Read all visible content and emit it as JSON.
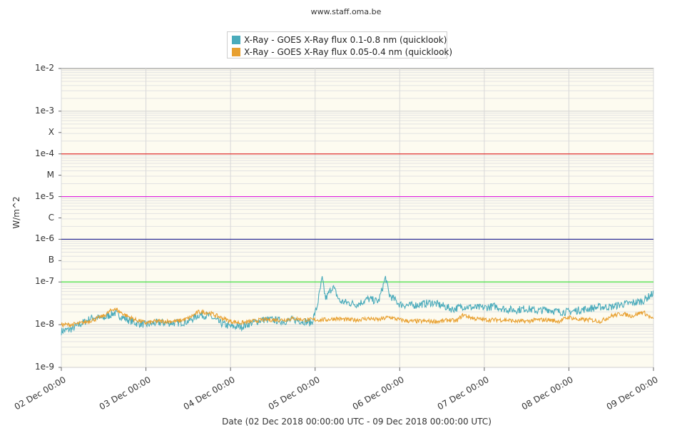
{
  "credit": "www.staff.oma.be",
  "chart_data": {
    "type": "line",
    "xlabel": "Date (02 Dec 2018 00:00:00 UTC - 09 Dec 2018 00:00:00 UTC)",
    "ylabel": "W/m^2",
    "yscale": "log",
    "ylim": [
      1e-09,
      0.01
    ],
    "xlim": [
      "2018-12-02T00:00",
      "2018-12-09T00:00"
    ],
    "x_ticks": [
      "02 Dec 00:00",
      "03 Dec 00:00",
      "04 Dec 00:00",
      "05 Dec 00:00",
      "06 Dec 00:00",
      "07 Dec 00:00",
      "08 Dec 00:00",
      "09 Dec 00:00"
    ],
    "y_ticks": [
      {
        "label": "1e-2",
        "value": 0.01
      },
      {
        "label": "1e-3",
        "value": 0.001
      },
      {
        "label": "X",
        "value": 0.0003162
      },
      {
        "label": "1e-4",
        "value": 0.0001
      },
      {
        "label": "M",
        "value": 3.162e-05
      },
      {
        "label": "1e-5",
        "value": 1e-05
      },
      {
        "label": "C",
        "value": 3.162e-06
      },
      {
        "label": "1e-6",
        "value": 1e-06
      },
      {
        "label": "B",
        "value": 3.162e-07
      },
      {
        "label": "1e-7",
        "value": 1e-07
      },
      {
        "label": "1e-8",
        "value": 1e-08
      },
      {
        "label": "1e-9",
        "value": 1e-09
      }
    ],
    "threshold_lines": [
      {
        "value": 0.0001,
        "color": "#e03030"
      },
      {
        "value": 1e-05,
        "color": "#e020e0"
      },
      {
        "value": 1e-06,
        "color": "#202090"
      },
      {
        "value": 1e-07,
        "color": "#40e040"
      }
    ],
    "legend_position": "top-center",
    "grid": true,
    "series": [
      {
        "name": "X-Ray - GOES X-Ray flux 0.1-0.8 nm (quicklook)",
        "color": "#4aabbb",
        "x": [
          "2018-12-02T00:00",
          "2018-12-02T03:00",
          "2018-12-02T06:00",
          "2018-12-02T09:00",
          "2018-12-02T12:00",
          "2018-12-02T15:00",
          "2018-12-02T18:00",
          "2018-12-02T21:00",
          "2018-12-03T00:00",
          "2018-12-03T03:00",
          "2018-12-03T06:00",
          "2018-12-03T09:00",
          "2018-12-03T12:00",
          "2018-12-03T15:00",
          "2018-12-03T18:00",
          "2018-12-03T21:00",
          "2018-12-04T00:00",
          "2018-12-04T03:00",
          "2018-12-04T06:00",
          "2018-12-04T09:00",
          "2018-12-04T12:00",
          "2018-12-04T15:00",
          "2018-12-04T18:00",
          "2018-12-04T21:00",
          "2018-12-04T23:00",
          "2018-12-05T00:30",
          "2018-12-05T02:00",
          "2018-12-05T03:00",
          "2018-12-05T05:00",
          "2018-12-05T07:00",
          "2018-12-05T09:00",
          "2018-12-05T12:00",
          "2018-12-05T15:00",
          "2018-12-05T18:00",
          "2018-12-05T20:00",
          "2018-12-05T21:00",
          "2018-12-06T00:00",
          "2018-12-06T03:00",
          "2018-12-06T06:00",
          "2018-12-06T09:00",
          "2018-12-06T12:00",
          "2018-12-06T15:00",
          "2018-12-06T18:00",
          "2018-12-06T21:00",
          "2018-12-07T00:00",
          "2018-12-07T03:00",
          "2018-12-07T06:00",
          "2018-12-07T09:00",
          "2018-12-07T12:00",
          "2018-12-07T15:00",
          "2018-12-07T18:00",
          "2018-12-07T21:00",
          "2018-12-08T00:00",
          "2018-12-08T03:00",
          "2018-12-08T06:00",
          "2018-12-08T09:00",
          "2018-12-08T12:00",
          "2018-12-08T15:00",
          "2018-12-08T18:00",
          "2018-12-08T21:00",
          "2018-12-09T00:00"
        ],
        "y": [
          7e-09,
          8e-09,
          1.1e-08,
          1.5e-08,
          1.4e-08,
          1.9e-08,
          1.4e-08,
          1.1e-08,
          1e-08,
          1.1e-08,
          1.1e-08,
          1.1e-08,
          1.2e-08,
          1.7e-08,
          1.6e-08,
          1.1e-08,
          9e-09,
          9e-09,
          1.1e-08,
          1.3e-08,
          1.3e-08,
          1.2e-08,
          1.3e-08,
          1.2e-08,
          1.1e-08,
          2.5e-08,
          1.2e-07,
          4e-08,
          8e-08,
          3.5e-08,
          3.3e-08,
          3e-08,
          4e-08,
          3.5e-08,
          1.3e-07,
          5e-08,
          3e-08,
          2.8e-08,
          3e-08,
          3.3e-08,
          2.8e-08,
          2.3e-08,
          2.7e-08,
          2.5e-08,
          2.5e-08,
          2.7e-08,
          2.3e-08,
          2.2e-08,
          2.4e-08,
          2.1e-08,
          2.3e-08,
          2e-08,
          2e-08,
          2.2e-08,
          2.4e-08,
          2.6e-08,
          2.6e-08,
          3e-08,
          3.2e-08,
          3.6e-08,
          5.5e-08
        ]
      },
      {
        "name": "X-Ray - GOES X-Ray flux 0.05-0.4 nm (quicklook)",
        "color": "#e8a030",
        "x": [
          "2018-12-02T00:00",
          "2018-12-02T03:00",
          "2018-12-02T06:00",
          "2018-12-02T09:00",
          "2018-12-02T12:00",
          "2018-12-02T15:00",
          "2018-12-02T18:00",
          "2018-12-02T21:00",
          "2018-12-03T00:00",
          "2018-12-03T03:00",
          "2018-12-03T06:00",
          "2018-12-03T09:00",
          "2018-12-03T12:00",
          "2018-12-03T15:00",
          "2018-12-03T18:00",
          "2018-12-03T21:00",
          "2018-12-04T00:00",
          "2018-12-04T03:00",
          "2018-12-04T06:00",
          "2018-12-04T09:00",
          "2018-12-04T12:00",
          "2018-12-04T15:00",
          "2018-12-04T18:00",
          "2018-12-04T21:00",
          "2018-12-05T00:00",
          "2018-12-05T03:00",
          "2018-12-05T06:00",
          "2018-12-05T09:00",
          "2018-12-05T12:00",
          "2018-12-05T15:00",
          "2018-12-05T18:00",
          "2018-12-05T21:00",
          "2018-12-06T00:00",
          "2018-12-06T03:00",
          "2018-12-06T06:00",
          "2018-12-06T09:00",
          "2018-12-06T12:00",
          "2018-12-06T14:00",
          "2018-12-06T16:00",
          "2018-12-06T18:00",
          "2018-12-06T21:00",
          "2018-12-07T00:00",
          "2018-12-07T03:00",
          "2018-12-07T06:00",
          "2018-12-07T09:00",
          "2018-12-07T12:00",
          "2018-12-07T15:00",
          "2018-12-07T18:00",
          "2018-12-07T21:00",
          "2018-12-08T00:00",
          "2018-12-08T03:00",
          "2018-12-08T06:00",
          "2018-12-08T09:00",
          "2018-12-08T12:00",
          "2018-12-08T15:00",
          "2018-12-08T18:00",
          "2018-12-08T21:00",
          "2018-12-09T00:00"
        ],
        "y": [
          1e-08,
          1e-08,
          1.1e-08,
          1.3e-08,
          1.6e-08,
          2.4e-08,
          1.7e-08,
          1.3e-08,
          1.1e-08,
          1.2e-08,
          1.2e-08,
          1.2e-08,
          1.4e-08,
          2e-08,
          1.9e-08,
          1.5e-08,
          1.2e-08,
          1.1e-08,
          1.2e-08,
          1.3e-08,
          1.3e-08,
          1.3e-08,
          1.4e-08,
          1.3e-08,
          1.3e-08,
          1.3e-08,
          1.4e-08,
          1.3e-08,
          1.3e-08,
          1.4e-08,
          1.3e-08,
          1.5e-08,
          1.3e-08,
          1.2e-08,
          1.2e-08,
          1.2e-08,
          1.2e-08,
          1.3e-08,
          1.2e-08,
          1.7e-08,
          1.4e-08,
          1.3e-08,
          1.3e-08,
          1.3e-08,
          1.2e-08,
          1.2e-08,
          1.3e-08,
          1.3e-08,
          1.2e-08,
          1.5e-08,
          1.3e-08,
          1.3e-08,
          1.2e-08,
          1.6e-08,
          1.8e-08,
          1.6e-08,
          2e-08,
          1.3e-08
        ]
      }
    ]
  }
}
